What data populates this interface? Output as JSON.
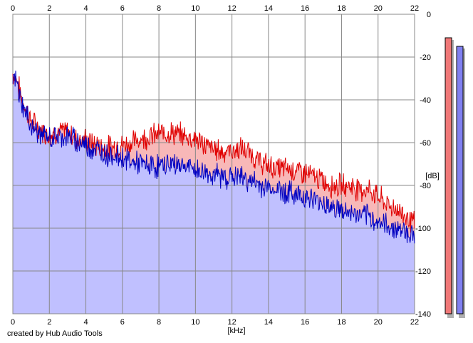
{
  "chart_data": {
    "type": "area",
    "x_unit_label": "[kHz]",
    "y_unit_label": "[dB]",
    "xlim": [
      0,
      22
    ],
    "ylim": [
      -140,
      0
    ],
    "x_ticks": [
      0,
      2,
      4,
      6,
      8,
      10,
      12,
      14,
      16,
      18,
      20,
      22
    ],
    "y_ticks": [
      0,
      -20,
      -40,
      -60,
      -80,
      -100,
      -120,
      -140
    ],
    "grid": true,
    "series": [
      {
        "channel": "red",
        "color": "#e00000",
        "fill": "#f8b8b8",
        "x": [
          0,
          0.2,
          0.5,
          1,
          1.5,
          2,
          2.5,
          3,
          3.5,
          4,
          4.5,
          5,
          5.5,
          6,
          6.5,
          7,
          7.5,
          8,
          8.5,
          9,
          9.5,
          10,
          10.5,
          11,
          11.5,
          12,
          12.5,
          13,
          13.5,
          14,
          14.5,
          15,
          15.5,
          16,
          16.5,
          17,
          17.5,
          18,
          18.5,
          19,
          19.5,
          20,
          20.5,
          21,
          21.5,
          22
        ],
        "y": [
          -28,
          -30,
          -40,
          -50,
          -54,
          -56,
          -55,
          -55,
          -58,
          -59,
          -61,
          -62,
          -62,
          -61,
          -60,
          -58,
          -57,
          -56,
          -55,
          -56,
          -57,
          -58,
          -61,
          -63,
          -64,
          -64,
          -63,
          -65,
          -69,
          -71,
          -72,
          -72,
          -73,
          -74,
          -76,
          -78,
          -80,
          -80,
          -80,
          -82,
          -82,
          -85,
          -89,
          -91,
          -94,
          -98
        ]
      },
      {
        "channel": "blue",
        "color": "#0000c0",
        "fill": "#c0c0ff",
        "x": [
          0,
          0.2,
          0.5,
          1,
          1.5,
          2,
          2.5,
          3,
          3.5,
          4,
          4.5,
          5,
          5.5,
          6,
          6.5,
          7,
          7.5,
          8,
          8.5,
          9,
          9.5,
          10,
          10.5,
          11,
          11.5,
          12,
          12.5,
          13,
          13.5,
          14,
          14.5,
          15,
          15.5,
          16,
          16.5,
          17,
          17.5,
          18,
          18.5,
          19,
          19.5,
          20,
          20.5,
          21,
          21.5,
          22
        ],
        "y": [
          -30,
          -32,
          -42,
          -52,
          -56,
          -58,
          -57,
          -57,
          -59,
          -61,
          -63,
          -65,
          -66,
          -67,
          -69,
          -70,
          -71,
          -71,
          -70,
          -70,
          -71,
          -73,
          -74,
          -75,
          -76,
          -76,
          -76,
          -78,
          -80,
          -81,
          -82,
          -83,
          -84,
          -85,
          -87,
          -88,
          -90,
          -92,
          -93,
          -94,
          -95,
          -97,
          -99,
          -100,
          -101,
          -104
        ]
      }
    ],
    "level_meters": [
      {
        "channel": "red",
        "value": -11,
        "color": "#f07878"
      },
      {
        "channel": "blue",
        "value": -15,
        "color": "#8080f0"
      }
    ]
  },
  "credit": "created by Hub Audio Tools"
}
